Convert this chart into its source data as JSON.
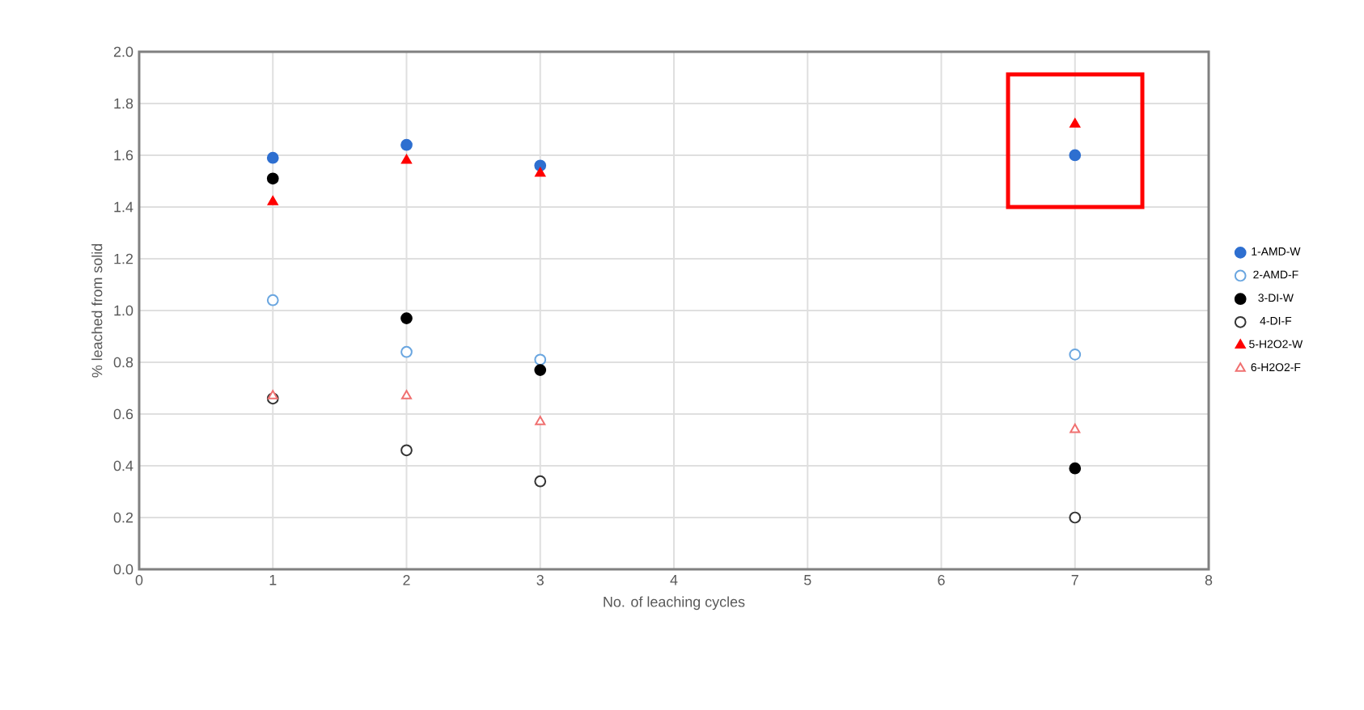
{
  "chart_data": {
    "type": "scatter",
    "xlabel": "No. of leaching cycles",
    "ylabel": "% leached from solid",
    "xlim": [
      0,
      8
    ],
    "xticks": [
      0,
      1,
      2,
      3,
      4,
      5,
      6,
      7,
      8
    ],
    "ylim": [
      0.0,
      2.0
    ],
    "yticks": [
      {
        "value": 0,
        "label": "0.0"
      },
      {
        "value": 0.2,
        "label": "0.2"
      },
      {
        "value": 0.4,
        "label": "0.4"
      },
      {
        "value": 0.6,
        "label": "0.6"
      },
      {
        "value": 0.8,
        "label": "0.8"
      },
      {
        "value": 1.0,
        "label": "1.0"
      },
      {
        "value": 1.2,
        "label": "1.2"
      },
      {
        "value": 1.4,
        "label": "1.4"
      },
      {
        "value": 1.6,
        "label": "1.6"
      },
      {
        "value": 1.8,
        "label": "1.8"
      },
      {
        "value": 2.0,
        "label": "2.0"
      }
    ],
    "grid": true,
    "legend": "right",
    "x": [
      1,
      2,
      3,
      7
    ],
    "series": [
      {
        "name": "1-AMD-W",
        "color": "#2e6fd0",
        "marker": "circle",
        "values": [
          1.59,
          1.64,
          1.56,
          1.6
        ]
      },
      {
        "name": "2-AMD-F",
        "color": "#6aa6e0",
        "marker": "circle-open",
        "values": [
          1.04,
          0.84,
          0.81,
          0.83
        ]
      },
      {
        "name": "3-DI-W",
        "color": "#000000",
        "marker": "circle",
        "values": [
          1.51,
          0.97,
          0.77,
          0.39
        ]
      },
      {
        "name": "4-DI-F",
        "color": "#333333",
        "marker": "circle-open",
        "values": [
          0.66,
          0.46,
          0.34,
          0.2
        ]
      },
      {
        "name": "5-H2O2-W",
        "color": "#ff0000",
        "marker": "triangle",
        "values": [
          1.42,
          1.58,
          1.53,
          1.72
        ]
      },
      {
        "name": "6-H2O2-F",
        "color": "#f07070",
        "marker": "triangle-open",
        "values": [
          0.67,
          0.67,
          0.57,
          0.54
        ]
      }
    ]
  }
}
